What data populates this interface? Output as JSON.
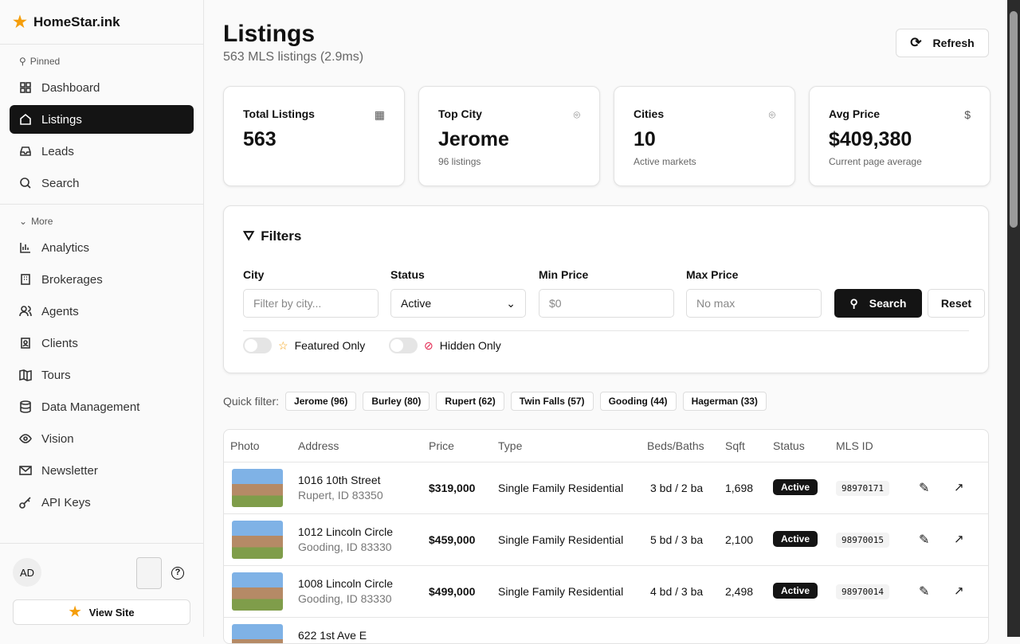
{
  "brand": {
    "name": "HomeStar.ink"
  },
  "sidebar": {
    "pinned_label": "Pinned",
    "more_label": "More",
    "pinned": [
      {
        "label": "Dashboard"
      },
      {
        "label": "Listings"
      },
      {
        "label": "Leads"
      },
      {
        "label": "Search"
      }
    ],
    "more": [
      {
        "label": "Analytics"
      },
      {
        "label": "Brokerages"
      },
      {
        "label": "Agents"
      },
      {
        "label": "Clients"
      },
      {
        "label": "Tours"
      },
      {
        "label": "Data Management"
      },
      {
        "label": "Vision"
      },
      {
        "label": "Newsletter"
      },
      {
        "label": "API Keys"
      }
    ],
    "avatar": "AD",
    "view_site": "View Site"
  },
  "header": {
    "title": "Listings",
    "subtitle": "563 MLS listings (2.9ms)",
    "refresh": "Refresh"
  },
  "stats": [
    {
      "title": "Total Listings",
      "value": "563",
      "desc": ""
    },
    {
      "title": "Top City",
      "value": "Jerome",
      "desc": "96 listings"
    },
    {
      "title": "Cities",
      "value": "10",
      "desc": "Active markets"
    },
    {
      "title": "Avg Price",
      "value": "$409,380",
      "desc": "Current page average"
    }
  ],
  "filters": {
    "title": "Filters",
    "city_label": "City",
    "city_placeholder": "Filter by city...",
    "status_label": "Status",
    "status_value": "Active",
    "min_label": "Min Price",
    "min_placeholder": "$0",
    "max_label": "Max Price",
    "max_placeholder": "No max",
    "search": "Search",
    "reset": "Reset",
    "featured": "Featured Only",
    "hidden": "Hidden Only"
  },
  "quick": {
    "label": "Quick filter:",
    "chips": [
      "Jerome (96)",
      "Burley (80)",
      "Rupert (62)",
      "Twin Falls (57)",
      "Gooding (44)",
      "Hagerman (33)"
    ]
  },
  "table": {
    "headers": [
      "Photo",
      "Address",
      "Price",
      "Type",
      "Beds/Baths",
      "Sqft",
      "Status",
      "MLS ID"
    ],
    "rows": [
      {
        "street": "1016 10th Street",
        "city": "Rupert, ID 83350",
        "price": "$319,000",
        "type": "Single Family Residential",
        "beds": "3 bd / 2 ba",
        "sqft": "1,698",
        "status": "Active",
        "mls": "98970171"
      },
      {
        "street": "1012 Lincoln Circle",
        "city": "Gooding, ID 83330",
        "price": "$459,000",
        "type": "Single Family Residential",
        "beds": "5 bd / 3 ba",
        "sqft": "2,100",
        "status": "Active",
        "mls": "98970015"
      },
      {
        "street": "1008 Lincoln Circle",
        "city": "Gooding, ID 83330",
        "price": "$499,000",
        "type": "Single Family Residential",
        "beds": "4 bd / 3 ba",
        "sqft": "2,498",
        "status": "Active",
        "mls": "98970014"
      },
      {
        "street": "622 1st Ave E",
        "city": "",
        "price": "",
        "type": "",
        "beds": "",
        "sqft": "",
        "status": "",
        "mls": ""
      }
    ]
  },
  "colors": {
    "accent": "#141414",
    "star": "#f59e0b"
  }
}
